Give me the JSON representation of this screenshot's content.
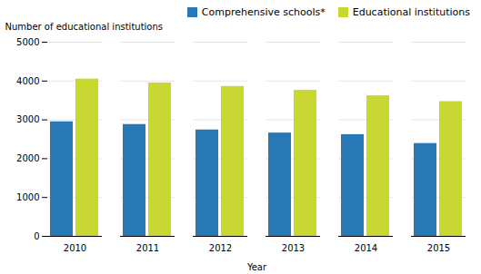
{
  "chart_data": {
    "type": "bar",
    "xlabel": "Year",
    "ylabel": "Number of educational institutions",
    "categories": [
      "2010",
      "2011",
      "2012",
      "2013",
      "2014",
      "2015"
    ],
    "series": [
      {
        "name": "Comprehensive schools*",
        "color": "#2878b5",
        "values": [
          2950,
          2880,
          2740,
          2660,
          2620,
          2390
        ]
      },
      {
        "name": "Educational institutions",
        "color": "#c8d830",
        "values": [
          4050,
          3950,
          3860,
          3760,
          3620,
          3470
        ]
      }
    ],
    "ylim": [
      0,
      5000
    ],
    "yticks": [
      0,
      1000,
      2000,
      3000,
      4000,
      5000
    ],
    "grid": true,
    "legend": "upper right"
  }
}
